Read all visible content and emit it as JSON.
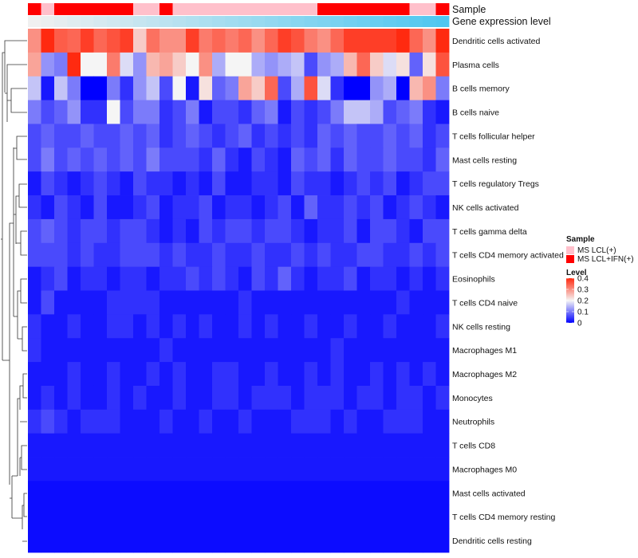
{
  "chart_data": {
    "type": "heatmap",
    "title": "",
    "annotation_tracks": [
      {
        "label": "Sample",
        "kind": "categorical"
      },
      {
        "label": "Gene expression level",
        "kind": "continuous",
        "colors": [
          "#f0f0f0",
          "#4fc7f0"
        ]
      }
    ],
    "sample_groups": [
      "MS LCL+IFN(+)",
      "MS LCL(+)",
      "MS LCL+IFN(+)",
      "MS LCL+IFN(+)",
      "MS LCL+IFN(+)",
      "MS LCL+IFN(+)",
      "MS LCL+IFN(+)",
      "MS LCL+IFN(+)",
      "MS LCL(+)",
      "MS LCL(+)",
      "MS LCL+IFN(+)",
      "MS LCL(+)",
      "MS LCL(+)",
      "MS LCL(+)",
      "MS LCL(+)",
      "MS LCL(+)",
      "MS LCL(+)",
      "MS LCL(+)",
      "MS LCL(+)",
      "MS LCL(+)",
      "MS LCL(+)",
      "MS LCL(+)",
      "MS LCL+IFN(+)",
      "MS LCL+IFN(+)",
      "MS LCL+IFN(+)",
      "MS LCL+IFN(+)",
      "MS LCL+IFN(+)",
      "MS LCL+IFN(+)",
      "MS LCL+IFN(+)",
      "MS LCL(+)",
      "MS LCL(+)",
      "MS LCL+IFN(+)"
    ],
    "rows": [
      "Dendritic cells activated",
      "Plasma cells",
      "B cells memory",
      "B cells naive",
      "T cells follicular helper",
      "Mast cells resting",
      "T cells regulatory  Tregs",
      "NK cells activated",
      "T cells gamma delta",
      "T cells CD4 memory activated",
      "Eosinophils",
      "T cells CD4 naive",
      "NK cells resting",
      "Macrophages M1",
      "Macrophages M2",
      "Monocytes",
      "Neutrophils",
      "T cells CD8",
      "Macrophages M0",
      "Mast cells activated",
      "T cells CD4 memory resting",
      "Dendritic cells resting"
    ],
    "values": [
      [
        0.3,
        0.4,
        0.35,
        0.34,
        0.38,
        0.34,
        0.36,
        0.38,
        0.24,
        0.33,
        0.3,
        0.3,
        0.38,
        0.32,
        0.34,
        0.32,
        0.34,
        0.3,
        0.34,
        0.38,
        0.36,
        0.32,
        0.3,
        0.34,
        0.38,
        0.38,
        0.38,
        0.38,
        0.4,
        0.34,
        0.3,
        0.4
      ],
      [
        0.28,
        0.12,
        0.1,
        0.4,
        0.2,
        0.2,
        0.32,
        0.18,
        0.12,
        0.26,
        0.28,
        0.24,
        0.2,
        0.3,
        0.14,
        0.2,
        0.2,
        0.14,
        0.12,
        0.14,
        0.16,
        0.06,
        0.12,
        0.14,
        0.26,
        0.34,
        0.24,
        0.18,
        0.22,
        0.08,
        0.22,
        0.36
      ],
      [
        0.16,
        0.02,
        0.16,
        0.1,
        0.0,
        0.0,
        0.1,
        0.04,
        0.12,
        0.16,
        0.06,
        0.2,
        0.02,
        0.22,
        0.08,
        0.1,
        0.28,
        0.24,
        0.34,
        0.06,
        0.14,
        0.36,
        0.18,
        0.04,
        0.0,
        0.0,
        0.12,
        0.14,
        0.0,
        0.26,
        0.3,
        0.1
      ],
      [
        0.1,
        0.06,
        0.08,
        0.12,
        0.04,
        0.04,
        0.2,
        0.06,
        0.1,
        0.1,
        0.04,
        0.06,
        0.1,
        0.02,
        0.06,
        0.06,
        0.04,
        0.08,
        0.1,
        0.02,
        0.06,
        0.04,
        0.06,
        0.1,
        0.16,
        0.16,
        0.14,
        0.06,
        0.08,
        0.1,
        0.04,
        0.02
      ],
      [
        0.06,
        0.08,
        0.06,
        0.06,
        0.08,
        0.06,
        0.06,
        0.08,
        0.06,
        0.08,
        0.04,
        0.06,
        0.08,
        0.06,
        0.04,
        0.06,
        0.08,
        0.04,
        0.06,
        0.04,
        0.06,
        0.04,
        0.08,
        0.06,
        0.08,
        0.06,
        0.06,
        0.08,
        0.06,
        0.08,
        0.04,
        0.06
      ],
      [
        0.06,
        0.1,
        0.06,
        0.08,
        0.06,
        0.08,
        0.06,
        0.08,
        0.06,
        0.1,
        0.06,
        0.06,
        0.06,
        0.04,
        0.08,
        0.04,
        0.02,
        0.06,
        0.04,
        0.02,
        0.08,
        0.06,
        0.08,
        0.04,
        0.08,
        0.06,
        0.06,
        0.08,
        0.06,
        0.06,
        0.04,
        0.08
      ],
      [
        0.02,
        0.06,
        0.04,
        0.02,
        0.04,
        0.06,
        0.04,
        0.02,
        0.06,
        0.04,
        0.04,
        0.02,
        0.04,
        0.02,
        0.06,
        0.02,
        0.02,
        0.04,
        0.04,
        0.02,
        0.06,
        0.04,
        0.04,
        0.02,
        0.04,
        0.06,
        0.04,
        0.06,
        0.02,
        0.04,
        0.06,
        0.06
      ],
      [
        0.04,
        0.02,
        0.06,
        0.04,
        0.02,
        0.06,
        0.02,
        0.02,
        0.04,
        0.06,
        0.02,
        0.04,
        0.04,
        0.06,
        0.02,
        0.04,
        0.04,
        0.02,
        0.04,
        0.06,
        0.02,
        0.08,
        0.04,
        0.04,
        0.06,
        0.04,
        0.06,
        0.02,
        0.04,
        0.06,
        0.04,
        0.02
      ],
      [
        0.06,
        0.08,
        0.06,
        0.04,
        0.06,
        0.06,
        0.04,
        0.06,
        0.06,
        0.04,
        0.02,
        0.04,
        0.02,
        0.06,
        0.04,
        0.06,
        0.06,
        0.04,
        0.06,
        0.06,
        0.04,
        0.02,
        0.04,
        0.04,
        0.06,
        0.02,
        0.06,
        0.06,
        0.04,
        0.02,
        0.06,
        0.06
      ],
      [
        0.06,
        0.06,
        0.06,
        0.04,
        0.06,
        0.04,
        0.04,
        0.06,
        0.06,
        0.06,
        0.04,
        0.06,
        0.04,
        0.04,
        0.06,
        0.04,
        0.04,
        0.06,
        0.04,
        0.04,
        0.06,
        0.04,
        0.06,
        0.04,
        0.04,
        0.06,
        0.06,
        0.04,
        0.04,
        0.06,
        0.04,
        0.06
      ],
      [
        0.02,
        0.04,
        0.06,
        0.02,
        0.04,
        0.04,
        0.02,
        0.04,
        0.04,
        0.02,
        0.04,
        0.04,
        0.06,
        0.04,
        0.06,
        0.04,
        0.02,
        0.06,
        0.04,
        0.08,
        0.04,
        0.02,
        0.04,
        0.04,
        0.06,
        0.02,
        0.04,
        0.04,
        0.02,
        0.04,
        0.02,
        0.04
      ],
      [
        0.02,
        0.06,
        0.02,
        0.02,
        0.02,
        0.02,
        0.04,
        0.04,
        0.04,
        0.04,
        0.02,
        0.02,
        0.02,
        0.02,
        0.02,
        0.02,
        0.04,
        0.02,
        0.02,
        0.02,
        0.02,
        0.02,
        0.02,
        0.02,
        0.02,
        0.02,
        0.02,
        0.02,
        0.04,
        0.02,
        0.02,
        0.02
      ],
      [
        0.04,
        0.02,
        0.02,
        0.04,
        0.02,
        0.02,
        0.04,
        0.04,
        0.02,
        0.04,
        0.02,
        0.04,
        0.02,
        0.04,
        0.02,
        0.02,
        0.04,
        0.02,
        0.04,
        0.02,
        0.02,
        0.04,
        0.02,
        0.02,
        0.04,
        0.02,
        0.02,
        0.04,
        0.02,
        0.02,
        0.02,
        0.04
      ],
      [
        0.04,
        0.02,
        0.02,
        0.02,
        0.02,
        0.02,
        0.02,
        0.02,
        0.02,
        0.02,
        0.04,
        0.02,
        0.02,
        0.02,
        0.02,
        0.02,
        0.02,
        0.02,
        0.02,
        0.02,
        0.02,
        0.02,
        0.02,
        0.04,
        0.02,
        0.02,
        0.02,
        0.02,
        0.02,
        0.02,
        0.02,
        0.02
      ],
      [
        0.02,
        0.02,
        0.02,
        0.04,
        0.02,
        0.02,
        0.04,
        0.02,
        0.02,
        0.04,
        0.02,
        0.04,
        0.02,
        0.02,
        0.04,
        0.04,
        0.02,
        0.02,
        0.04,
        0.02,
        0.02,
        0.04,
        0.02,
        0.04,
        0.02,
        0.02,
        0.04,
        0.02,
        0.04,
        0.02,
        0.04,
        0.02
      ],
      [
        0.02,
        0.04,
        0.02,
        0.04,
        0.02,
        0.02,
        0.04,
        0.02,
        0.04,
        0.02,
        0.02,
        0.04,
        0.02,
        0.02,
        0.04,
        0.04,
        0.02,
        0.04,
        0.04,
        0.04,
        0.02,
        0.04,
        0.04,
        0.04,
        0.02,
        0.04,
        0.04,
        0.02,
        0.04,
        0.04,
        0.02,
        0.04
      ],
      [
        0.04,
        0.06,
        0.04,
        0.02,
        0.04,
        0.04,
        0.04,
        0.02,
        0.02,
        0.02,
        0.04,
        0.02,
        0.02,
        0.04,
        0.02,
        0.02,
        0.04,
        0.02,
        0.02,
        0.02,
        0.04,
        0.04,
        0.04,
        0.02,
        0.04,
        0.02,
        0.02,
        0.04,
        0.04,
        0.04,
        0.02,
        0.02
      ],
      [
        0.02,
        0.02,
        0.02,
        0.02,
        0.02,
        0.02,
        0.02,
        0.02,
        0.02,
        0.02,
        0.02,
        0.02,
        0.02,
        0.02,
        0.02,
        0.02,
        0.02,
        0.02,
        0.02,
        0.02,
        0.02,
        0.02,
        0.02,
        0.02,
        0.02,
        0.02,
        0.02,
        0.02,
        0.02,
        0.02,
        0.02,
        0.02
      ],
      [
        0.02,
        0.02,
        0.02,
        0.02,
        0.02,
        0.02,
        0.02,
        0.02,
        0.02,
        0.02,
        0.02,
        0.02,
        0.02,
        0.02,
        0.02,
        0.02,
        0.02,
        0.02,
        0.02,
        0.02,
        0.02,
        0.02,
        0.02,
        0.02,
        0.02,
        0.02,
        0.02,
        0.02,
        0.02,
        0.02,
        0.02,
        0.02
      ],
      [
        0.01,
        0.01,
        0.01,
        0.01,
        0.01,
        0.01,
        0.01,
        0.01,
        0.01,
        0.01,
        0.01,
        0.01,
        0.01,
        0.01,
        0.01,
        0.01,
        0.01,
        0.01,
        0.01,
        0.01,
        0.01,
        0.01,
        0.01,
        0.01,
        0.01,
        0.01,
        0.01,
        0.01,
        0.01,
        0.01,
        0.01,
        0.01
      ],
      [
        0.01,
        0.01,
        0.01,
        0.01,
        0.01,
        0.01,
        0.01,
        0.01,
        0.01,
        0.01,
        0.01,
        0.01,
        0.01,
        0.01,
        0.01,
        0.01,
        0.01,
        0.01,
        0.01,
        0.01,
        0.01,
        0.01,
        0.01,
        0.01,
        0.01,
        0.01,
        0.01,
        0.01,
        0.01,
        0.01,
        0.01,
        0.01
      ],
      [
        0.01,
        0.01,
        0.01,
        0.01,
        0.01,
        0.01,
        0.01,
        0.01,
        0.01,
        0.01,
        0.01,
        0.01,
        0.01,
        0.01,
        0.01,
        0.01,
        0.01,
        0.01,
        0.01,
        0.01,
        0.01,
        0.01,
        0.01,
        0.01,
        0.01,
        0.01,
        0.01,
        0.01,
        0.01,
        0.01,
        0.01,
        0.01
      ]
    ],
    "color_scale": {
      "min": 0,
      "max": 0.4,
      "stops": [
        [
          0,
          "#0000ff"
        ],
        [
          0.2,
          "#f5f5f5"
        ],
        [
          0.4,
          "#ff2a10"
        ]
      ],
      "ticks": [
        "0",
        "0.1",
        "0.2",
        "0.3",
        "0.4"
      ],
      "tick_values": [
        0,
        0.1,
        0.2,
        0.3,
        0.4
      ]
    },
    "legend": {
      "sample_title": "Sample",
      "sample_entries": [
        {
          "label": "MS LCL(+)",
          "color": "#ffc0cb"
        },
        {
          "label": "MS LCL+IFN(+)",
          "color": "#ff0000"
        }
      ],
      "level_title": "Level",
      "placement": "right"
    }
  }
}
